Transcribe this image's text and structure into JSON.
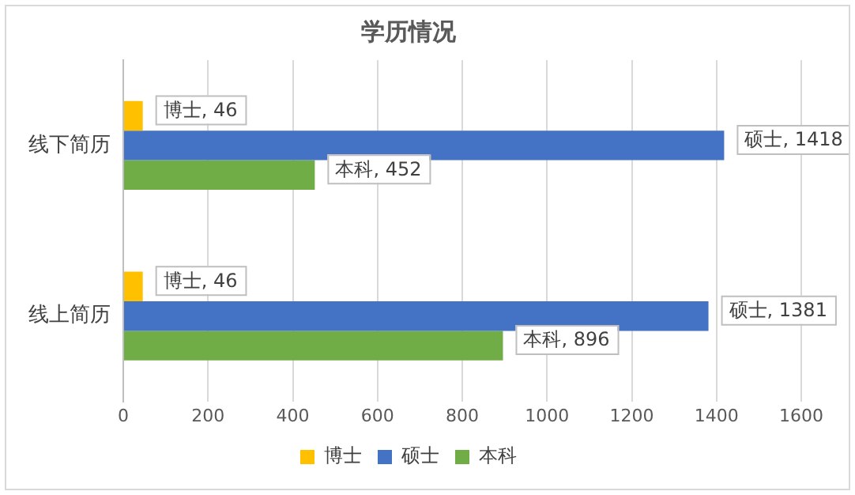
{
  "chart_data": {
    "type": "bar",
    "orientation": "horizontal",
    "title": "学历情况",
    "categories": [
      "线下简历",
      "线上简历"
    ],
    "series": [
      {
        "name": "博士",
        "color": "#ffc000",
        "values": [
          46,
          46
        ],
        "value_labels": [
          "博士, 46",
          "博士, 46"
        ]
      },
      {
        "name": "硕士",
        "color": "#4472c4",
        "values": [
          1418,
          1381
        ],
        "value_labels": [
          "硕士, 1418",
          "硕士, 1381"
        ]
      },
      {
        "name": "本科",
        "color": "#70ad47",
        "values": [
          452,
          896
        ],
        "value_labels": [
          "本科, 452",
          "本科, 896"
        ]
      }
    ],
    "xlim": [
      0,
      1600
    ],
    "xticks": [
      0,
      200,
      400,
      600,
      800,
      1000,
      1200,
      1400,
      1600
    ],
    "grid": "x",
    "legend": "bottom"
  }
}
